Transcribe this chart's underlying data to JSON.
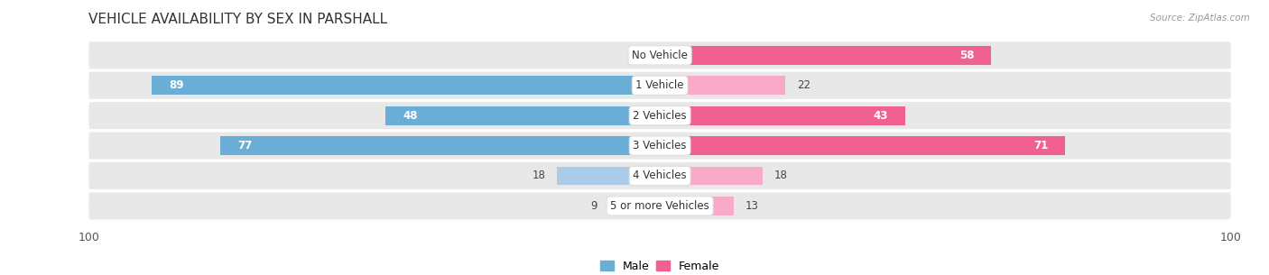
{
  "title": "VEHICLE AVAILABILITY BY SEX IN PARSHALL",
  "source": "Source: ZipAtlas.com",
  "categories": [
    "No Vehicle",
    "1 Vehicle",
    "2 Vehicles",
    "3 Vehicles",
    "4 Vehicles",
    "5 or more Vehicles"
  ],
  "male_values": [
    1,
    89,
    48,
    77,
    18,
    9
  ],
  "female_values": [
    58,
    22,
    43,
    71,
    18,
    13
  ],
  "male_color_strong": "#6aaed6",
  "male_color_light": "#aacce8",
  "female_color_strong": "#f06090",
  "female_color_light": "#f8aac8",
  "bar_height": 0.62,
  "xlim": [
    -100,
    100
  ],
  "background_color": "#ffffff",
  "row_bg_color": "#e8e8e8",
  "title_fontsize": 11,
  "label_fontsize": 8.5,
  "tick_fontsize": 9,
  "legend_fontsize": 9,
  "strong_threshold": 30
}
